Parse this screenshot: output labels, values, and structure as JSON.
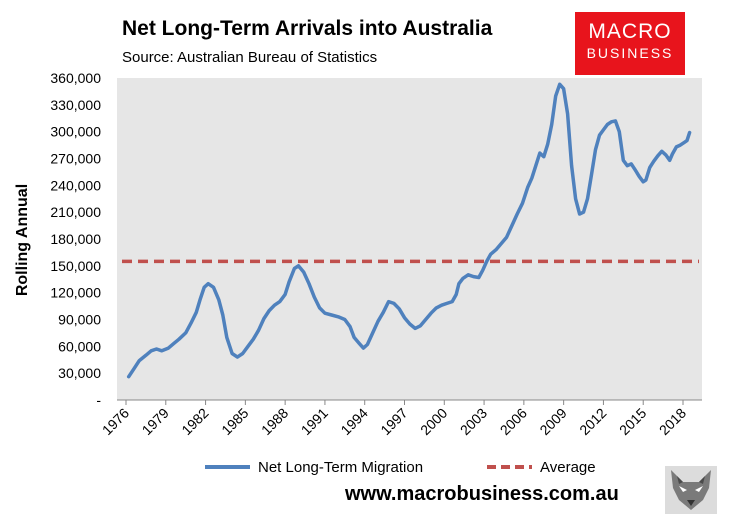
{
  "header": {
    "title": "Net Long-Term Arrivals into Australia",
    "source": "Source: Australian Bureau of Statistics"
  },
  "logo": {
    "line1": "MACRO",
    "line2": "BUSINESS"
  },
  "footer": {
    "website": "www.macrobusiness.com.au"
  },
  "colors": {
    "series": "#4f81bd",
    "average": "#c0504d",
    "plot_bg": "#e6e6e6",
    "logo_bg": "#e8141c"
  },
  "chart_data": {
    "type": "line",
    "ylabel": "Rolling Annual",
    "xlabel": "",
    "ylim": [
      0,
      360000
    ],
    "xlim": [
      1976.0,
      2018.6
    ],
    "y_ticks": [
      0,
      30000,
      60000,
      90000,
      120000,
      150000,
      180000,
      210000,
      240000,
      270000,
      300000,
      330000,
      360000
    ],
    "y_tick_labels": [
      "-",
      "30,000",
      "60,000",
      "90,000",
      "120,000",
      "150,000",
      "180,000",
      "210,000",
      "240,000",
      "270,000",
      "300,000",
      "330,000",
      "360,000"
    ],
    "x_ticks": [
      1976,
      1979,
      1982,
      1985,
      1988,
      1991,
      1994,
      1997,
      2000,
      2003,
      2006,
      2009,
      2012,
      2015,
      2018
    ],
    "x_tick_labels": [
      "1976",
      "1979",
      "1982",
      "1985",
      "1988",
      "1991",
      "1994",
      "1997",
      "2000",
      "2003",
      "2006",
      "2009",
      "2012",
      "2015",
      "2018"
    ],
    "grid": false,
    "legend_position": "bottom",
    "series": [
      {
        "name": "Net Long-Term Migration",
        "style": "solid",
        "x": [
          1976.2,
          1976.6,
          1977.0,
          1977.5,
          1977.9,
          1978.3,
          1978.7,
          1979.2,
          1979.6,
          1980.0,
          1980.5,
          1980.9,
          1981.3,
          1981.6,
          1981.9,
          1982.2,
          1982.6,
          1983.0,
          1983.3,
          1983.6,
          1984.0,
          1984.4,
          1984.8,
          1985.2,
          1985.6,
          1986.0,
          1986.4,
          1986.8,
          1987.2,
          1987.6,
          1988.0,
          1988.3,
          1988.7,
          1989.0,
          1989.4,
          1989.8,
          1990.2,
          1990.6,
          1991.0,
          1991.5,
          1992.0,
          1992.5,
          1992.9,
          1993.2,
          1993.6,
          1993.9,
          1994.2,
          1994.6,
          1995.0,
          1995.4,
          1995.8,
          1996.2,
          1996.6,
          1997.0,
          1997.4,
          1997.8,
          1998.2,
          1998.6,
          1999.0,
          1999.4,
          1999.8,
          2000.2,
          2000.6,
          2000.9,
          2001.1,
          2001.4,
          2001.8,
          2002.2,
          2002.6,
          2002.9,
          2003.2,
          2003.5,
          2003.9,
          2004.3,
          2004.7,
          2005.1,
          2005.5,
          2005.9,
          2006.3,
          2006.6,
          2006.9,
          2007.2,
          2007.5,
          2007.8,
          2008.1,
          2008.4,
          2008.7,
          2009.0,
          2009.3,
          2009.6,
          2009.9,
          2010.2,
          2010.5,
          2010.8,
          2011.1,
          2011.4,
          2011.7,
          2012.0,
          2012.3,
          2012.6,
          2012.9,
          2013.2,
          2013.5,
          2013.8,
          2014.1,
          2014.4,
          2014.7,
          2015.0,
          2015.2,
          2015.5,
          2015.8,
          2016.1,
          2016.4,
          2016.7,
          2017.0,
          2017.2,
          2017.5,
          2017.8,
          2018.1,
          2018.3,
          2018.5
        ],
        "values": [
          26000,
          35000,
          44000,
          50000,
          55000,
          57000,
          55000,
          58000,
          63000,
          68000,
          75000,
          86000,
          98000,
          113000,
          126000,
          130000,
          126000,
          112000,
          95000,
          70000,
          52000,
          48000,
          52000,
          60000,
          68000,
          78000,
          91000,
          100000,
          106000,
          110000,
          118000,
          132000,
          147000,
          150000,
          143000,
          130000,
          115000,
          103000,
          97000,
          95000,
          93000,
          90000,
          82000,
          70000,
          63000,
          58000,
          62000,
          75000,
          88000,
          98000,
          110000,
          108000,
          102000,
          92000,
          85000,
          80000,
          83000,
          90000,
          97000,
          103000,
          106000,
          108000,
          110000,
          118000,
          130000,
          136000,
          140000,
          138000,
          137000,
          145000,
          155000,
          163000,
          168000,
          175000,
          182000,
          195000,
          208000,
          220000,
          238000,
          248000,
          262000,
          276000,
          272000,
          286000,
          308000,
          340000,
          353000,
          348000,
          320000,
          262000,
          225000,
          208000,
          210000,
          225000,
          252000,
          280000,
          296000,
          302000,
          308000,
          311000,
          312000,
          300000,
          268000,
          262000,
          264000,
          257000,
          250000,
          244000,
          246000,
          260000,
          267000,
          273000,
          278000,
          274000,
          268000,
          275000,
          283000,
          285000,
          288000,
          290000,
          299000
        ]
      },
      {
        "name": "Average",
        "style": "dashed",
        "x": [
          1976.0,
          2018.6
        ],
        "values": [
          155000,
          155000
        ]
      }
    ]
  }
}
